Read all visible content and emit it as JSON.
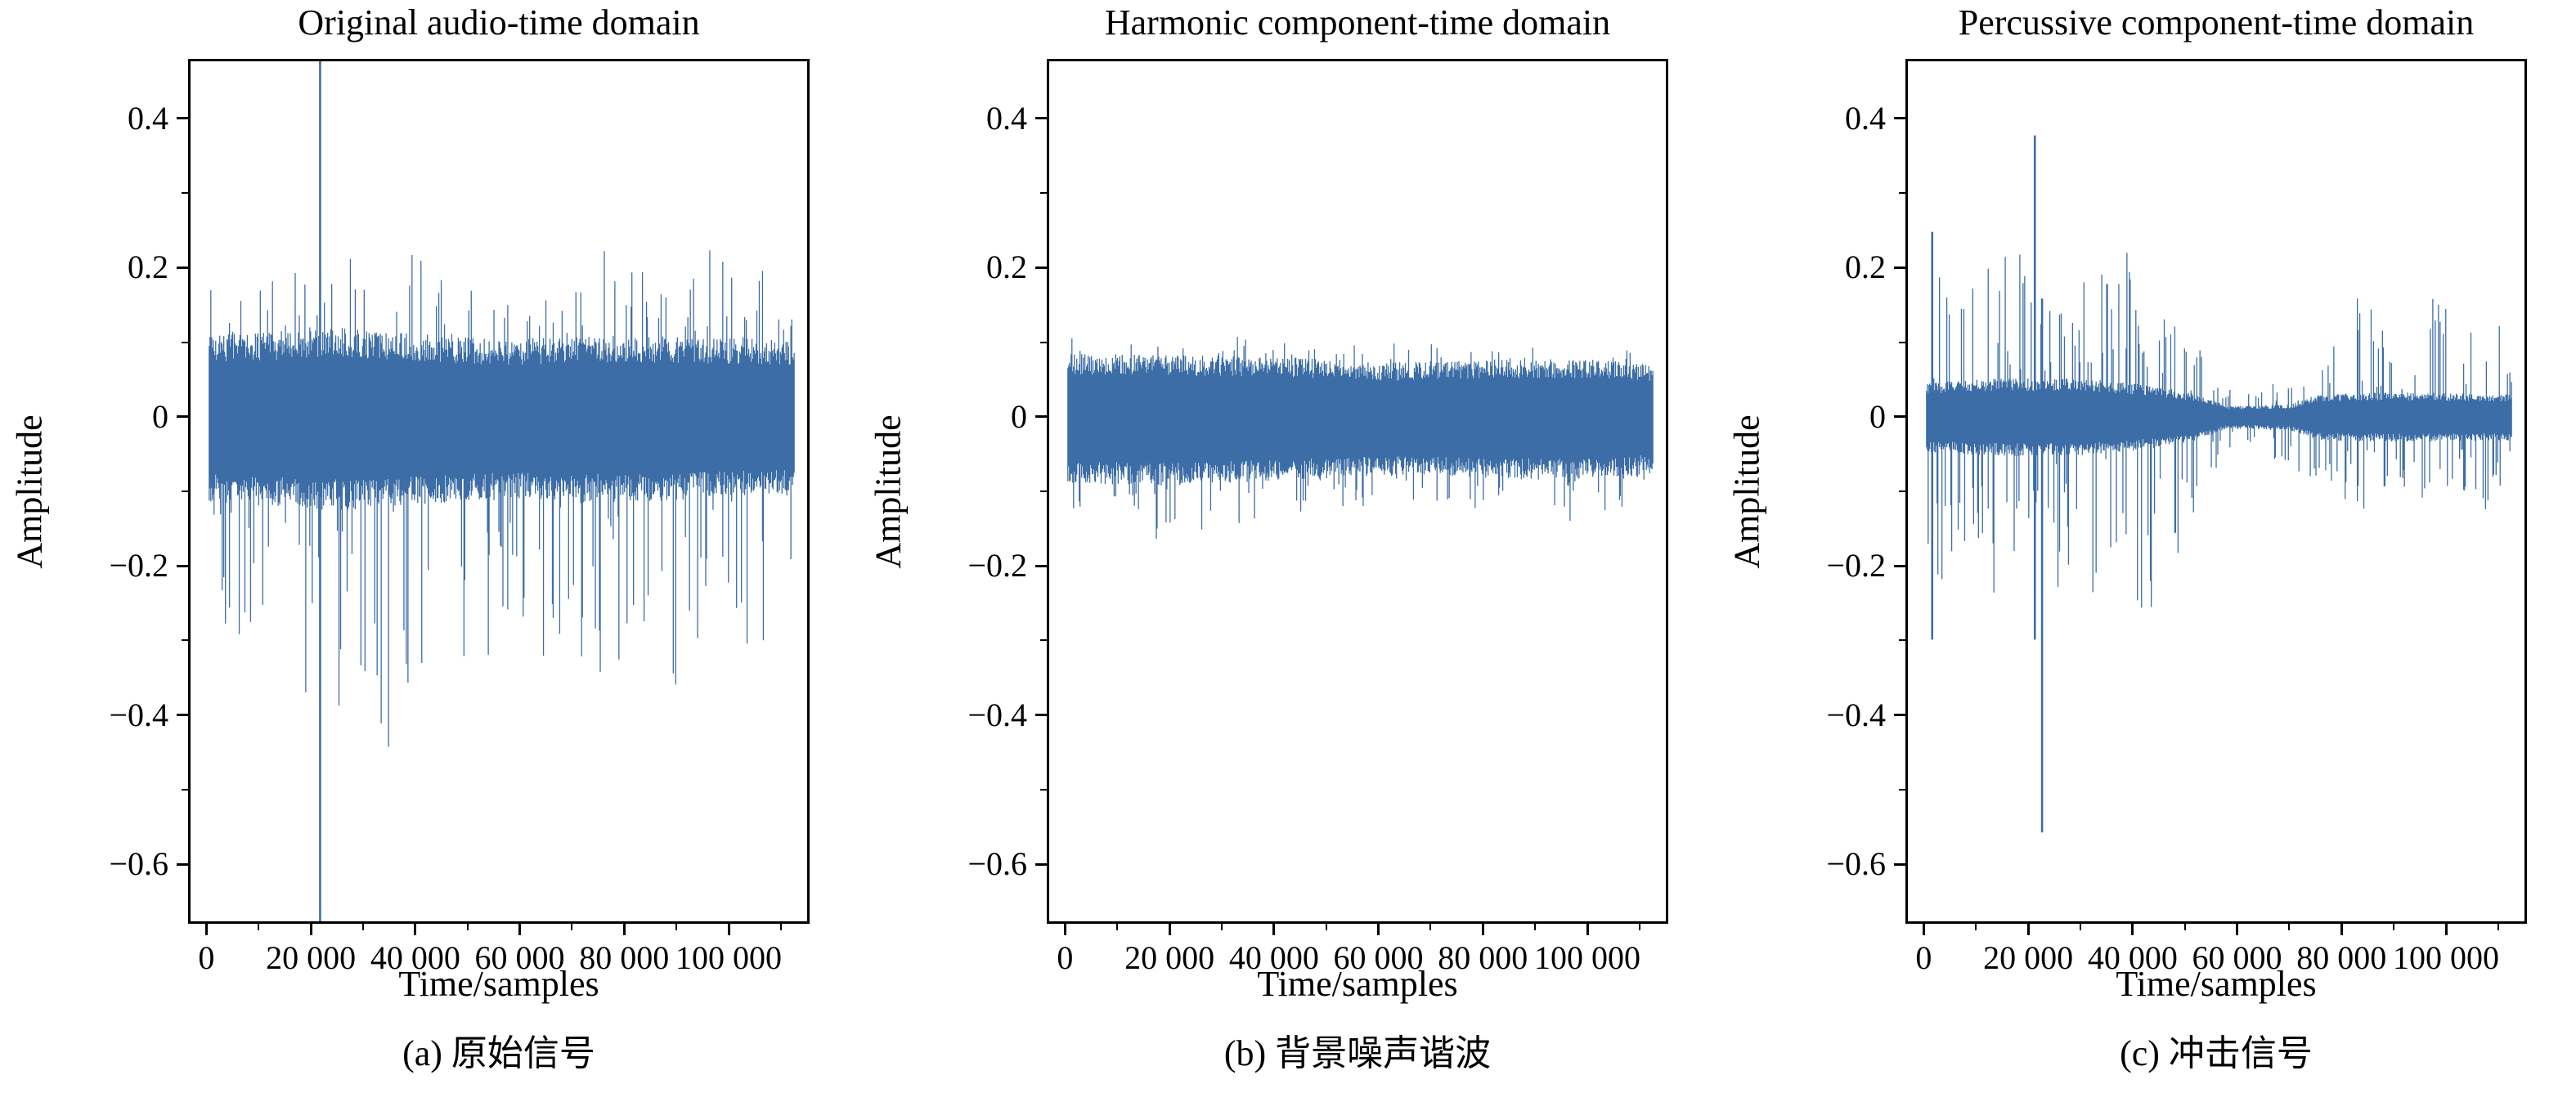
{
  "chart_data": [
    {
      "type": "line",
      "subtype": "audio-waveform",
      "title": "Original audio-time domain",
      "xlabel": "Time/samples",
      "ylabel": "Amplitude",
      "caption": "(a) 原始信号",
      "color": "#3c6da6",
      "xlim": [
        -3500,
        115500
      ],
      "ylim": [
        -0.68,
        0.48
      ],
      "data_range": [
        0,
        113000
      ],
      "xticks": [
        {
          "value": 0,
          "label": "0"
        },
        {
          "value": 20000,
          "label": "20 000"
        },
        {
          "value": 40000,
          "label": "40 000"
        },
        {
          "value": 60000,
          "label": "60 000"
        },
        {
          "value": 80000,
          "label": "80 000"
        },
        {
          "value": 100000,
          "label": "100 000"
        }
      ],
      "yticks": [
        {
          "value": 0.4,
          "label": "0.4"
        },
        {
          "value": 0.2,
          "label": "0.2"
        },
        {
          "value": 0,
          "label": "0"
        },
        {
          "value": -0.2,
          "label": "−0.2"
        },
        {
          "value": -0.4,
          "label": "−0.4"
        },
        {
          "value": -0.6,
          "label": "−0.6"
        }
      ],
      "core_band": [
        [
          0,
          0.105,
          0.11
        ],
        [
          25000,
          0.115,
          0.12
        ],
        [
          55000,
          0.1,
          0.105
        ],
        [
          80000,
          0.105,
          0.11
        ],
        [
          113000,
          0.1,
          0.1
        ]
      ],
      "peak_envelope": [
        [
          0,
          0.18,
          0.2
        ],
        [
          3000,
          0.26,
          0.3
        ],
        [
          8000,
          0.22,
          0.43
        ],
        [
          15000,
          0.2,
          0.4
        ],
        [
          22000,
          0.19,
          0.37
        ],
        [
          30000,
          0.24,
          0.42
        ],
        [
          36000,
          0.28,
          0.47
        ],
        [
          42000,
          0.2,
          0.38
        ],
        [
          50000,
          0.19,
          0.4
        ],
        [
          57000,
          0.16,
          0.3
        ],
        [
          63000,
          0.17,
          0.33
        ],
        [
          70000,
          0.16,
          0.31
        ],
        [
          78000,
          0.25,
          0.37
        ],
        [
          85000,
          0.19,
          0.3
        ],
        [
          92000,
          0.19,
          0.39
        ],
        [
          98000,
          0.24,
          0.28
        ],
        [
          104000,
          0.17,
          0.32
        ],
        [
          110000,
          0.26,
          0.36
        ],
        [
          113000,
          0.14,
          0.16
        ]
      ],
      "peak_prob_pos": 0.1,
      "peak_prob_neg": 0.13,
      "spikes": [
        {
          "x": 21500,
          "top": 0.48,
          "bottom": -0.68
        }
      ]
    },
    {
      "type": "line",
      "subtype": "audio-waveform",
      "title": "Harmonic component-time domain",
      "xlabel": "Time/samples",
      "ylabel": "Amplitude",
      "caption": "(b) 背景噪声谐波",
      "color": "#3c6da6",
      "xlim": [
        -3500,
        115500
      ],
      "ylim": [
        -0.68,
        0.48
      ],
      "data_range": [
        0,
        113000
      ],
      "xticks": [
        {
          "value": 0,
          "label": "0"
        },
        {
          "value": 20000,
          "label": "20 000"
        },
        {
          "value": 40000,
          "label": "40 000"
        },
        {
          "value": 60000,
          "label": "60 000"
        },
        {
          "value": 80000,
          "label": "80 000"
        },
        {
          "value": 100000,
          "label": "100 000"
        }
      ],
      "yticks": [
        {
          "value": 0.4,
          "label": "0.4"
        },
        {
          "value": 0.2,
          "label": "0.2"
        },
        {
          "value": 0,
          "label": "0"
        },
        {
          "value": -0.2,
          "label": "−0.2"
        },
        {
          "value": -0.4,
          "label": "−0.4"
        },
        {
          "value": -0.6,
          "label": "−0.6"
        }
      ],
      "core_band": [
        [
          0,
          0.082,
          0.085
        ],
        [
          20000,
          0.08,
          0.088
        ],
        [
          40000,
          0.078,
          0.082
        ],
        [
          60000,
          0.07,
          0.075
        ],
        [
          80000,
          0.073,
          0.078
        ],
        [
          100000,
          0.075,
          0.08
        ],
        [
          113000,
          0.068,
          0.072
        ]
      ],
      "peak_envelope": [
        [
          0,
          0.115,
          0.12
        ],
        [
          8000,
          0.11,
          0.15
        ],
        [
          15000,
          0.11,
          0.17
        ],
        [
          25000,
          0.105,
          0.16
        ],
        [
          35000,
          0.11,
          0.14
        ],
        [
          45000,
          0.1,
          0.13
        ],
        [
          55000,
          0.1,
          0.12
        ],
        [
          65000,
          0.1,
          0.125
        ],
        [
          75000,
          0.1,
          0.12
        ],
        [
          85000,
          0.1,
          0.13
        ],
        [
          92000,
          0.1,
          0.15
        ],
        [
          100000,
          0.1,
          0.14
        ],
        [
          108000,
          0.1,
          0.13
        ],
        [
          113000,
          0.09,
          0.1
        ]
      ],
      "peak_prob_pos": 0.07,
      "peak_prob_neg": 0.09,
      "spikes": []
    },
    {
      "type": "line",
      "subtype": "audio-waveform",
      "title": "Percussive component-time domain",
      "xlabel": "Time/samples",
      "ylabel": "Amplitude",
      "caption": "(c) 冲击信号",
      "color": "#3c6da6",
      "xlim": [
        -3500,
        115500
      ],
      "ylim": [
        -0.68,
        0.48
      ],
      "data_range": [
        0,
        113000
      ],
      "xticks": [
        {
          "value": 0,
          "label": "0"
        },
        {
          "value": 20000,
          "label": "20 000"
        },
        {
          "value": 40000,
          "label": "40 000"
        },
        {
          "value": 60000,
          "label": "60 000"
        },
        {
          "value": 80000,
          "label": "80 000"
        },
        {
          "value": 100000,
          "label": "100 000"
        }
      ],
      "yticks": [
        {
          "value": 0.4,
          "label": "0.4"
        },
        {
          "value": 0.2,
          "label": "0.2"
        },
        {
          "value": 0,
          "label": "0"
        },
        {
          "value": -0.2,
          "label": "−0.2"
        },
        {
          "value": -0.4,
          "label": "−0.4"
        },
        {
          "value": -0.6,
          "label": "−0.6"
        }
      ],
      "core_band": [
        [
          0,
          0.045,
          0.045
        ],
        [
          15000,
          0.05,
          0.05
        ],
        [
          30000,
          0.05,
          0.05
        ],
        [
          45000,
          0.04,
          0.04
        ],
        [
          52000,
          0.03,
          0.03
        ],
        [
          58000,
          0.015,
          0.015
        ],
        [
          70000,
          0.016,
          0.016
        ],
        [
          76000,
          0.03,
          0.03
        ],
        [
          90000,
          0.032,
          0.032
        ],
        [
          113000,
          0.03,
          0.03
        ]
      ],
      "peak_envelope": [
        [
          0,
          0.26,
          0.3
        ],
        [
          2000,
          0.2,
          0.24
        ],
        [
          5000,
          0.18,
          0.22
        ],
        [
          9000,
          0.22,
          0.27
        ],
        [
          13000,
          0.2,
          0.24
        ],
        [
          17000,
          0.23,
          0.28
        ],
        [
          21000,
          0.22,
          0.26
        ],
        [
          25000,
          0.19,
          0.28
        ],
        [
          29000,
          0.17,
          0.24
        ],
        [
          33000,
          0.22,
          0.3
        ],
        [
          37000,
          0.24,
          0.28
        ],
        [
          41000,
          0.2,
          0.3
        ],
        [
          45000,
          0.17,
          0.24
        ],
        [
          49000,
          0.13,
          0.18
        ],
        [
          53000,
          0.09,
          0.12
        ],
        [
          57000,
          0.05,
          0.06
        ],
        [
          62000,
          0.04,
          0.05
        ],
        [
          68000,
          0.05,
          0.06
        ],
        [
          73000,
          0.07,
          0.08
        ],
        [
          78000,
          0.1,
          0.1
        ],
        [
          83000,
          0.17,
          0.14
        ],
        [
          88000,
          0.13,
          0.12
        ],
        [
          93000,
          0.1,
          0.1
        ],
        [
          98000,
          0.17,
          0.14
        ],
        [
          103000,
          0.12,
          0.11
        ],
        [
          108000,
          0.18,
          0.13
        ],
        [
          113000,
          0.08,
          0.08
        ]
      ],
      "peak_prob_pos": 0.16,
      "peak_prob_neg": 0.16,
      "spikes": [
        {
          "x": 1200,
          "top": 0.25,
          "bottom": -0.3
        },
        {
          "x": 21000,
          "top": 0.38,
          "bottom": -0.3
        },
        {
          "x": 22400,
          "top": 0.16,
          "bottom": -0.56
        }
      ]
    }
  ]
}
